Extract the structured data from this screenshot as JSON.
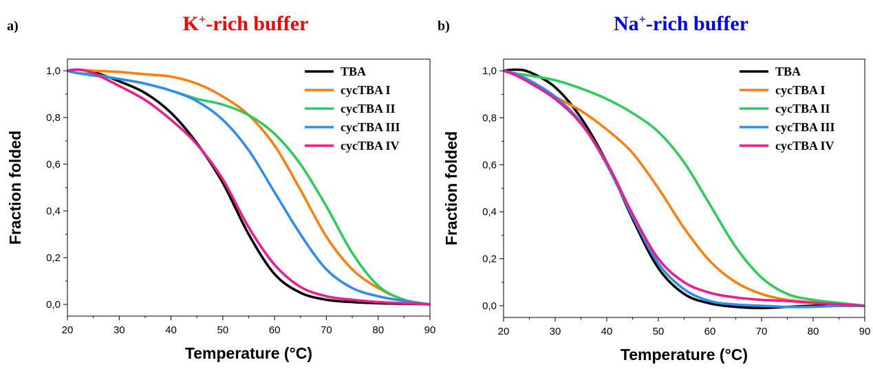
{
  "panels": [
    {
      "letter": "a)",
      "title_main": "K",
      "title_sup": "+",
      "title_rest": "-rich buffer",
      "title_color": "#ff0000"
    },
    {
      "letter": "b)",
      "title_main": "Na",
      "title_sup": "+",
      "title_rest": "-rich buffer",
      "title_color": "#0000ff"
    }
  ],
  "chart_data": [
    {
      "type": "line",
      "xlabel": "Temperature (°C)",
      "ylabel": "Fraction folded",
      "xlim": [
        20,
        90
      ],
      "ylim": [
        -0.05,
        1.05
      ],
      "xticks": [
        "20",
        "30",
        "40",
        "50",
        "60",
        "70",
        "80",
        "90"
      ],
      "yticks": [
        "0,0",
        "0,2",
        "0,4",
        "0,6",
        "0,8",
        "1,0"
      ],
      "grid": false,
      "legend_position": "top-right",
      "x": [
        20,
        22,
        25,
        30,
        35,
        40,
        45,
        50,
        55,
        60,
        65,
        70,
        75,
        80,
        85,
        90
      ],
      "series": [
        {
          "name": "TBA",
          "color": "#000000",
          "values": [
            1.0,
            1.005,
            0.995,
            0.955,
            0.905,
            0.82,
            0.69,
            0.52,
            0.3,
            0.13,
            0.05,
            0.02,
            0.01,
            0.005,
            0.003,
            0.0
          ]
        },
        {
          "name": "cycTBA I",
          "color": "#ff7f0e",
          "values": [
            1.0,
            1.005,
            1.0,
            0.995,
            0.985,
            0.975,
            0.945,
            0.89,
            0.81,
            0.68,
            0.49,
            0.29,
            0.15,
            0.07,
            0.02,
            0.0
          ]
        },
        {
          "name": "cycTBA II",
          "color": "#2ecc5a",
          "values": [
            1.0,
            0.99,
            0.985,
            0.965,
            0.945,
            0.915,
            0.88,
            0.855,
            0.81,
            0.73,
            0.6,
            0.42,
            0.22,
            0.08,
            0.02,
            0.0
          ]
        },
        {
          "name": "cycTBA III",
          "color": "#2e8ef0",
          "values": [
            1.0,
            0.99,
            0.98,
            0.965,
            0.945,
            0.915,
            0.87,
            0.79,
            0.66,
            0.48,
            0.3,
            0.15,
            0.07,
            0.035,
            0.015,
            0.0
          ]
        },
        {
          "name": "cycTBA IV",
          "color": "#ee1c8c",
          "values": [
            1.0,
            1.005,
            0.99,
            0.935,
            0.875,
            0.79,
            0.685,
            0.535,
            0.33,
            0.17,
            0.075,
            0.035,
            0.02,
            0.01,
            0.005,
            0.0
          ]
        }
      ]
    },
    {
      "type": "line",
      "xlabel": "Temperature (°C)",
      "ylabel": "Fraction folded",
      "xlim": [
        20,
        90
      ],
      "ylim": [
        -0.05,
        1.05
      ],
      "xticks": [
        "20",
        "30",
        "40",
        "50",
        "60",
        "70",
        "80",
        "90"
      ],
      "yticks": [
        "0,0",
        "0,2",
        "0,4",
        "0,6",
        "0,8",
        "1,0"
      ],
      "grid": false,
      "legend_position": "top-right",
      "x": [
        20,
        22,
        25,
        30,
        35,
        40,
        45,
        50,
        55,
        60,
        65,
        70,
        75,
        80,
        85,
        90
      ],
      "series": [
        {
          "name": "TBA",
          "color": "#000000",
          "values": [
            1.0,
            1.005,
            0.995,
            0.93,
            0.8,
            0.61,
            0.37,
            0.16,
            0.05,
            0.01,
            -0.005,
            -0.01,
            -0.005,
            0.0,
            0.0,
            0.0
          ]
        },
        {
          "name": "cycTBA I",
          "color": "#ff7f0e",
          "values": [
            1.0,
            0.985,
            0.955,
            0.89,
            0.83,
            0.75,
            0.65,
            0.5,
            0.33,
            0.19,
            0.1,
            0.05,
            0.025,
            0.015,
            0.008,
            0.0
          ]
        },
        {
          "name": "cycTBA II",
          "color": "#2ecc5a",
          "values": [
            1.0,
            0.99,
            0.98,
            0.96,
            0.925,
            0.88,
            0.82,
            0.74,
            0.61,
            0.43,
            0.25,
            0.12,
            0.05,
            0.025,
            0.012,
            0.0
          ]
        },
        {
          "name": "cycTBA III",
          "color": "#2e8ef0",
          "values": [
            1.0,
            0.99,
            0.96,
            0.89,
            0.78,
            0.6,
            0.38,
            0.18,
            0.07,
            0.02,
            0.005,
            0.0,
            -0.005,
            -0.005,
            0.0,
            0.0
          ]
        },
        {
          "name": "cycTBA IV",
          "color": "#ee1c8c",
          "values": [
            1.0,
            0.985,
            0.95,
            0.88,
            0.775,
            0.61,
            0.39,
            0.2,
            0.1,
            0.055,
            0.035,
            0.025,
            0.02,
            0.012,
            0.006,
            0.0
          ]
        }
      ]
    }
  ]
}
